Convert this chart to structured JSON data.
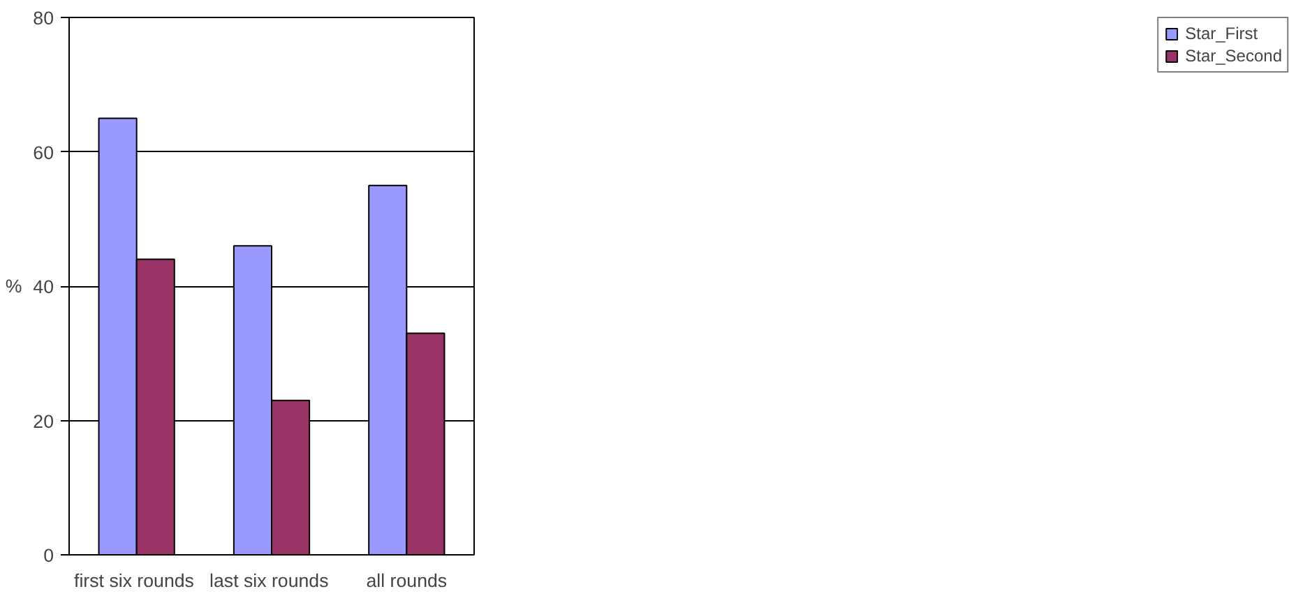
{
  "chart_data": {
    "type": "bar",
    "categories": [
      "first six  rounds",
      "last six  rounds",
      "all rounds"
    ],
    "series": [
      {
        "name": "Star_First",
        "color": "#9999ff",
        "values": [
          65,
          46,
          55
        ]
      },
      {
        "name": "Star_Second",
        "color": "#993366",
        "values": [
          44,
          23,
          33
        ]
      }
    ],
    "ylabel": "%",
    "ylim": [
      0,
      80
    ],
    "yticks": [
      0,
      20,
      40,
      60,
      80
    ],
    "grid": "y",
    "legend": "right"
  }
}
